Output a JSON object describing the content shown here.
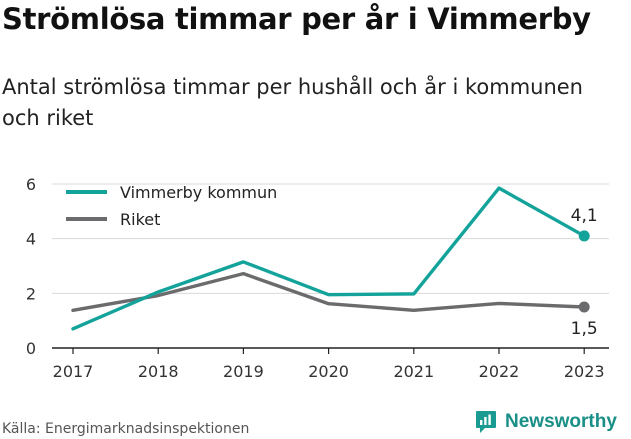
{
  "title": "Strömlösa timmar per år i Vimmerby",
  "subtitle": "Antal strömlösa timmar per hushåll och år i kommunen och riket",
  "source": "Källa: Energimarknadsinspektionen",
  "brand": {
    "name": "Newsworthy",
    "icon": "newsworthy-logo-icon",
    "color": "#1a9b92"
  },
  "colors": {
    "vimmerby": "#14a39a",
    "riket": "#6b6b6e",
    "grid": "#d9d9d9",
    "axis": "#222222"
  },
  "chart_data": {
    "type": "line",
    "title": "Strömlösa timmar per år i Vimmerby",
    "subtitle": "Antal strömlösa timmar per hushåll och år i kommunen och riket",
    "x": [
      "2017",
      "2018",
      "2019",
      "2020",
      "2021",
      "2022",
      "2023"
    ],
    "series": [
      {
        "name": "Vimmerby kommun",
        "values": [
          0.7,
          2.05,
          3.15,
          1.95,
          1.98,
          5.85,
          4.1
        ],
        "color": "#14a39a",
        "end_label": "4,1"
      },
      {
        "name": "Riket",
        "values": [
          1.38,
          1.92,
          2.72,
          1.62,
          1.38,
          1.63,
          1.5
        ],
        "color": "#6b6b6e",
        "end_label": "1,5"
      }
    ],
    "ylim": [
      0,
      6
    ],
    "yticks": [
      "0",
      "2",
      "4",
      "6"
    ],
    "grid": true,
    "legend": "top-left",
    "xlabel": "",
    "ylabel": ""
  }
}
